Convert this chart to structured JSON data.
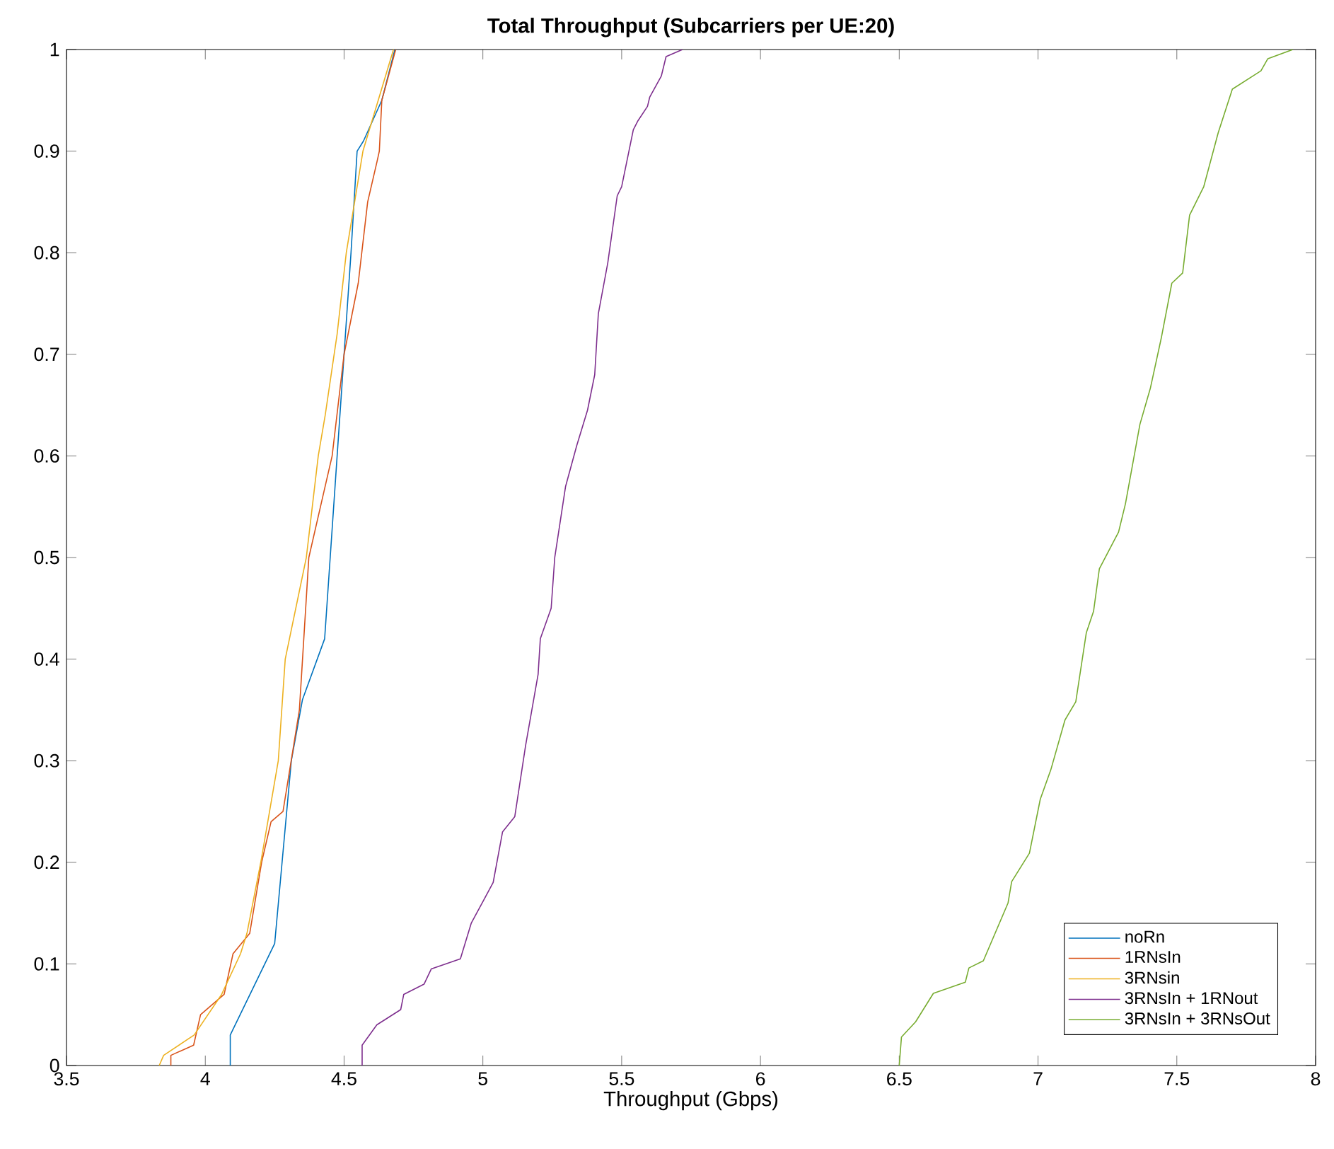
{
  "chart_data": {
    "type": "line",
    "title": "Total Throughput (Subcarriers per UE:20)",
    "xlabel": "Throughput (Gbps)",
    "xlim": [
      3.5,
      8
    ],
    "ylim": [
      0,
      1
    ],
    "xticks": [
      3.5,
      4,
      4.5,
      5,
      5.5,
      6,
      6.5,
      7,
      7.5,
      8
    ],
    "yticks": [
      0,
      0.1,
      0.2,
      0.3,
      0.4,
      0.5,
      0.6,
      0.7,
      0.8,
      0.9,
      1
    ],
    "grid": false,
    "legend": "bottom right",
    "marker": "none",
    "line_style": "solid",
    "series": [
      {
        "name": "noRn",
        "color": "#0072bd",
        "x": [
          4.09,
          4.09,
          4.25,
          4.27,
          4.31,
          4.35,
          4.43,
          4.45,
          4.475,
          4.5,
          4.525,
          4.547,
          4.57,
          4.636,
          4.683
        ],
        "values": [
          0,
          0.03,
          0.12,
          0.18,
          0.3,
          0.36,
          0.42,
          0.5,
          0.6,
          0.7,
          0.8,
          0.9,
          0.91,
          0.95,
          1
        ]
      },
      {
        "name": "1RNsIn",
        "color": "#d95319",
        "x": [
          3.876,
          3.876,
          3.958,
          3.983,
          4.068,
          4.1,
          4.16,
          4.203,
          4.237,
          4.28,
          4.339,
          4.373,
          4.415,
          4.457,
          4.5,
          4.551,
          4.585,
          4.619,
          4.627,
          4.636,
          4.686
        ],
        "values": [
          0,
          0.01,
          0.02,
          0.05,
          0.07,
          0.11,
          0.13,
          0.2,
          0.24,
          0.25,
          0.35,
          0.5,
          0.55,
          0.6,
          0.7,
          0.77,
          0.85,
          0.89,
          0.9,
          0.95,
          1
        ]
      },
      {
        "name": "3RNsin",
        "color": "#edb120",
        "x": [
          3.834,
          3.85,
          3.96,
          4.059,
          4.127,
          4.15,
          4.2,
          4.263,
          4.288,
          4.364,
          4.407,
          4.432,
          4.475,
          4.508,
          4.568,
          4.678
        ],
        "values": [
          0,
          0.01,
          0.03,
          0.07,
          0.11,
          0.13,
          0.2,
          0.3,
          0.4,
          0.5,
          0.6,
          0.64,
          0.72,
          0.8,
          0.9,
          1
        ]
      },
      {
        "name": "3RNsIn + 1RNout",
        "color": "#7e2f8e",
        "x": [
          4.565,
          4.565,
          4.618,
          4.704,
          4.715,
          4.788,
          4.814,
          4.919,
          4.958,
          5.037,
          5.071,
          5.115,
          5.154,
          5.199,
          5.207,
          5.246,
          5.259,
          5.298,
          5.338,
          5.377,
          5.403,
          5.416,
          5.45,
          5.484,
          5.5,
          5.542,
          5.559,
          5.593,
          5.601,
          5.643,
          5.66,
          5.719
        ],
        "values": [
          0,
          0.02,
          0.04,
          0.055,
          0.07,
          0.08,
          0.095,
          0.105,
          0.14,
          0.18,
          0.23,
          0.245,
          0.315,
          0.385,
          0.42,
          0.45,
          0.5,
          0.57,
          0.61,
          0.645,
          0.68,
          0.74,
          0.79,
          0.856,
          0.865,
          0.921,
          0.93,
          0.944,
          0.953,
          0.974,
          0.993,
          1
        ]
      },
      {
        "name": "3RNsIn + 3RNsOut",
        "color": "#77ac30",
        "x": [
          6.5,
          6.508,
          6.559,
          6.623,
          6.738,
          6.751,
          6.803,
          6.892,
          6.905,
          6.969,
          7.008,
          7.046,
          7.097,
          7.136,
          7.174,
          7.2,
          7.221,
          7.29,
          7.315,
          7.367,
          7.405,
          7.444,
          7.482,
          7.521,
          7.546,
          7.597,
          7.649,
          7.7,
          7.803,
          7.828,
          7.918
        ],
        "values": [
          0,
          0.028,
          0.043,
          0.071,
          0.082,
          0.096,
          0.103,
          0.16,
          0.181,
          0.209,
          0.262,
          0.291,
          0.34,
          0.358,
          0.426,
          0.447,
          0.489,
          0.525,
          0.553,
          0.631,
          0.667,
          0.716,
          0.77,
          0.78,
          0.837,
          0.865,
          0.918,
          0.961,
          0.979,
          0.991,
          1
        ]
      }
    ]
  }
}
